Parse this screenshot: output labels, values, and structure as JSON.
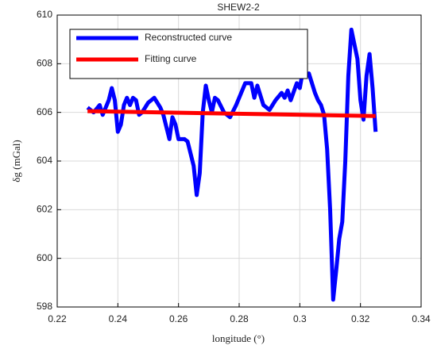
{
  "chart_data": {
    "type": "line",
    "title": "SHEW2-2",
    "x_label": "longitude (°)",
    "y_label": "δg (mGal)",
    "xlim": [
      0.22,
      0.34
    ],
    "xticks": [
      0.22,
      0.24,
      0.26,
      0.28,
      0.3,
      0.32,
      0.34
    ],
    "ylim": [
      598,
      610
    ],
    "yticks": [
      598,
      600,
      602,
      604,
      606,
      608,
      610
    ],
    "grid": true,
    "legend": "upper left",
    "series": [
      {
        "name": "Reconstructed curve",
        "color": "#0000ff",
        "x": [
          0.23,
          0.232,
          0.234,
          0.235,
          0.236,
          0.237,
          0.238,
          0.239,
          0.24,
          0.241,
          0.242,
          0.243,
          0.244,
          0.245,
          0.246,
          0.247,
          0.248,
          0.25,
          0.252,
          0.254,
          0.255,
          0.257,
          0.258,
          0.259,
          0.26,
          0.262,
          0.263,
          0.265,
          0.266,
          0.267,
          0.268,
          0.269,
          0.27,
          0.271,
          0.272,
          0.273,
          0.275,
          0.277,
          0.279,
          0.281,
          0.282,
          0.284,
          0.285,
          0.286,
          0.288,
          0.29,
          0.292,
          0.294,
          0.295,
          0.296,
          0.297,
          0.299,
          0.3,
          0.301,
          0.302,
          0.303,
          0.304,
          0.305,
          0.306,
          0.307,
          0.308,
          0.309,
          0.31,
          0.311,
          0.312,
          0.313,
          0.314,
          0.315,
          0.316,
          0.317,
          0.318,
          0.319,
          0.32,
          0.321,
          0.322,
          0.323,
          0.324,
          0.325
        ],
        "values": [
          606.2,
          606.0,
          606.3,
          605.9,
          606.2,
          606.5,
          607.0,
          606.5,
          605.2,
          605.5,
          606.3,
          606.6,
          606.3,
          606.6,
          606.5,
          605.9,
          606.0,
          606.4,
          606.6,
          606.2,
          605.9,
          604.9,
          605.8,
          605.5,
          604.9,
          604.9,
          604.8,
          603.8,
          602.6,
          603.5,
          606.0,
          607.1,
          606.5,
          606.0,
          606.6,
          606.5,
          606.0,
          605.8,
          606.3,
          606.9,
          607.2,
          607.2,
          606.6,
          607.1,
          606.3,
          606.1,
          606.5,
          606.8,
          606.6,
          606.9,
          606.5,
          607.2,
          607.0,
          607.7,
          607.5,
          607.6,
          607.2,
          606.8,
          606.5,
          606.3,
          605.9,
          604.5,
          602.0,
          598.3,
          599.5,
          600.8,
          601.5,
          604.0,
          607.5,
          609.4,
          608.8,
          608.2,
          606.5,
          605.7,
          607.5,
          608.4,
          607.0,
          605.2
        ]
      },
      {
        "name": "Fitting curve",
        "color": "#ff0000",
        "x": [
          0.23,
          0.325
        ],
        "values": [
          606.05,
          605.85
        ]
      }
    ]
  }
}
